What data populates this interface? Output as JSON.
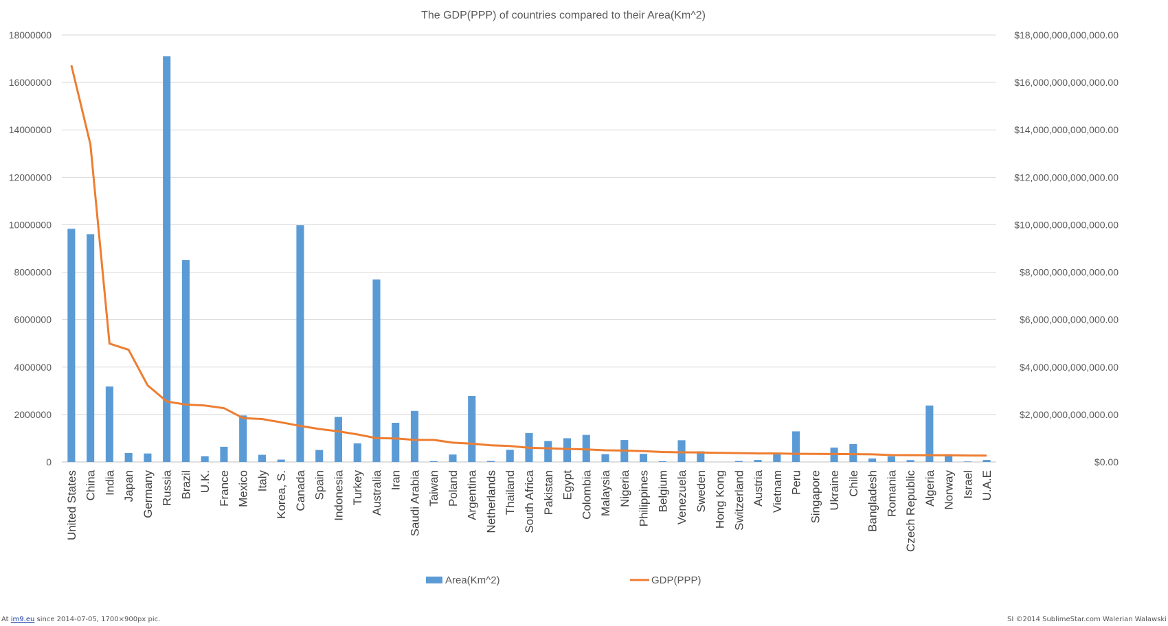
{
  "chart_data": {
    "type": "bar",
    "title": "The GDP(PPP) of countries compared to their  Area(Km^2)",
    "categories": [
      "United States",
      "China",
      "India",
      "Japan",
      "Germany",
      "Russia",
      "Brazil",
      "U.K.",
      "France",
      "Mexico",
      "Italy",
      "Korea, S.",
      "Canada",
      "Spain",
      "Indonesia",
      "Turkey",
      "Australia",
      "Iran",
      "Saudi Arabia",
      "Taiwan",
      "Poland",
      "Argentina",
      "Netherlands",
      "Thailand",
      "South Africa",
      "Pakistan",
      "Egypt",
      "Colombia",
      "Malaysia",
      "Nigeria",
      "Philippines",
      "Belgium",
      "Venezuela",
      "Sweden",
      "Hong Kong",
      "Switzerland",
      "Austria",
      "Vietnam",
      "Peru",
      "Singapore",
      "Ukraine",
      "Chile",
      "Bangladesh",
      "Romania",
      "Czech Republic",
      "Algeria",
      "Norway",
      "Israel",
      "U.A.E"
    ],
    "series": [
      {
        "name": "Area(Km^2)",
        "type": "bar",
        "axis": "left",
        "color": "#5B9BD5",
        "values": [
          9830000,
          9600000,
          3180000,
          378000,
          357000,
          17100000,
          8510000,
          243000,
          640000,
          1960000,
          301000,
          100000,
          9980000,
          505000,
          1900000,
          784000,
          7690000,
          1650000,
          2150000,
          36000,
          313000,
          2780000,
          42000,
          513000,
          1220000,
          882000,
          1000000,
          1140000,
          330000,
          924000,
          343000,
          30500,
          916000,
          450000,
          1100,
          41000,
          84000,
          332000,
          1290000,
          710,
          604000,
          756000,
          148000,
          238000,
          79000,
          2380000,
          324000,
          22000,
          84000
        ]
      },
      {
        "name": "GDP(PPP)",
        "type": "line",
        "axis": "right",
        "color": "#ED7D31",
        "values": [
          16720000000000,
          13390000000000,
          4990000000000,
          4730000000000,
          3230000000000,
          2550000000000,
          2420000000000,
          2380000000000,
          2270000000000,
          1850000000000,
          1810000000000,
          1670000000000,
          1520000000000,
          1390000000000,
          1290000000000,
          1160000000000,
          1000000000000,
          990000000000,
          930000000000,
          930000000000,
          814000000000,
          771000000000,
          700000000000,
          673000000000,
          595000000000,
          575000000000,
          551000000000,
          527000000000,
          492000000000,
          479000000000,
          455000000000,
          420000000000,
          405000000000,
          400000000000,
          385000000000,
          372000000000,
          360000000000,
          358000000000,
          345000000000,
          340000000000,
          335000000000,
          330000000000,
          321000000000,
          288000000000,
          286000000000,
          285000000000,
          281000000000,
          273000000000,
          270000000000
        ]
      }
    ],
    "y_left": {
      "ylim": [
        0,
        18000000
      ],
      "ticks": [
        "0",
        "2000000",
        "4000000",
        "6000000",
        "8000000",
        "10000000",
        "12000000",
        "14000000",
        "16000000",
        "18000000"
      ]
    },
    "y_right": {
      "ylim": [
        0,
        18000000000000
      ],
      "ticks": [
        "$0.00",
        "$2,000,000,000,000.00",
        "$4,000,000,000,000.00",
        "$6,000,000,000,000.00",
        "$8,000,000,000,000.00",
        "$10,000,000,000,000.00",
        "$12,000,000,000,000.00",
        "$14,000,000,000,000.00",
        "$16,000,000,000,000.00",
        "$18,000,000,000,000.00"
      ]
    },
    "grid": true,
    "legend_position": "bottom"
  },
  "footer": {
    "left_prefix": "At ",
    "left_link": "im9.eu",
    "left_suffix": " since 2014-07-05, 1700×900px pic.",
    "right": "SI ©2014 SublimeStar.com Walerian Walawski"
  }
}
